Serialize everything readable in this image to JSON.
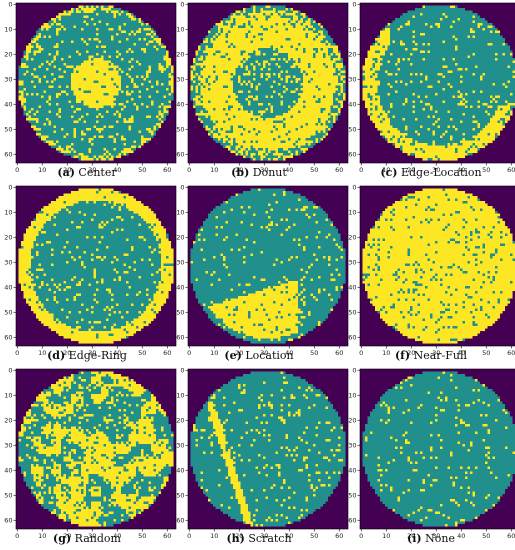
{
  "colors": {
    "outside": "#440154",
    "normal": "#21908d",
    "defect": "#fde725"
  },
  "axis": {
    "ticks": [
      "0",
      "10",
      "20",
      "30",
      "40",
      "50",
      "60"
    ],
    "range": [
      0,
      64
    ]
  },
  "panels": [
    {
      "letter": "(a)",
      "label": "Center",
      "pattern": "center"
    },
    {
      "letter": "(b)",
      "label": "Donut",
      "pattern": "donut"
    },
    {
      "letter": "(c)",
      "label": "Edge-Location",
      "pattern": "edge-location"
    },
    {
      "letter": "(d)",
      "label": "Edge-Ring",
      "pattern": "edge-ring"
    },
    {
      "letter": "(e)",
      "label": "Location",
      "pattern": "location"
    },
    {
      "letter": "(f)",
      "label": "Near-Full",
      "pattern": "near-full"
    },
    {
      "letter": "(g)",
      "label": "Random",
      "pattern": "random"
    },
    {
      "letter": "(h)",
      "label": "Scratch",
      "pattern": "scratch"
    },
    {
      "letter": "(i)",
      "label": "None",
      "pattern": "none"
    }
  ]
}
